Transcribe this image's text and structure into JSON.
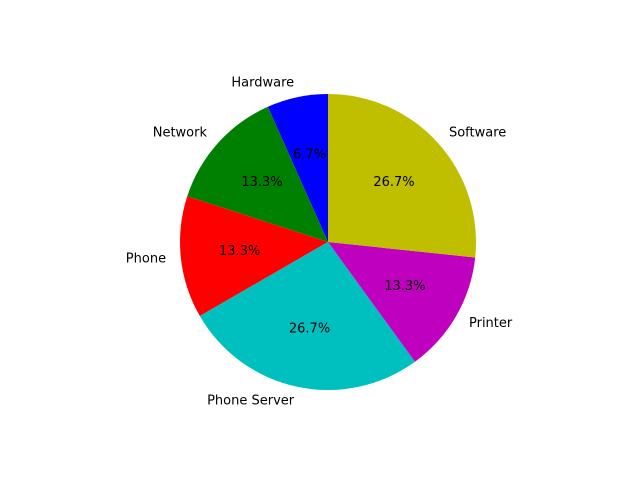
{
  "chart_data": {
    "type": "pie",
    "title": "",
    "labels": [
      "Hardware",
      "Network",
      "Phone",
      "Phone Server",
      "Printer",
      "Software"
    ],
    "values": [
      1,
      2,
      2,
      4,
      2,
      4
    ],
    "percent_labels": [
      "6.7%",
      "13.3%",
      "13.3%",
      "26.7%",
      "13.3%",
      "26.7%"
    ],
    "colors": [
      "#0000ff",
      "#008000",
      "#ff0000",
      "#00bfbf",
      "#bf00bf",
      "#bfbf00"
    ],
    "start_angle_deg": 90,
    "direction": "counterclockwise",
    "legend": "none"
  }
}
